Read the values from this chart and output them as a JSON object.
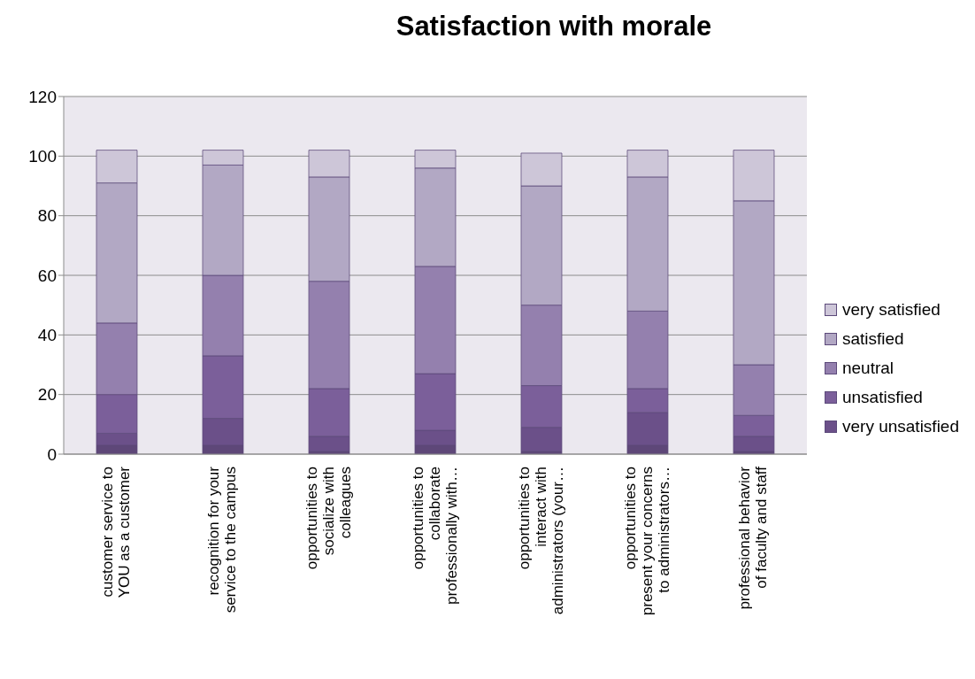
{
  "chart_data": {
    "type": "bar",
    "title": "Satisfaction with morale",
    "stacked": true,
    "categories": [
      "customer service to YOU as a customer",
      "recognition for your service to the campus",
      "opportunities to socialize with colleagues",
      "opportunities to collaborate professionally with…",
      "opportunities to interact with administrators (your…",
      "opportunities to present your concerns to administrators…",
      "professional behavior of faculty and staff"
    ],
    "series": [
      {
        "color": "#5e4778",
        "values": [
          3,
          3,
          1,
          3,
          1,
          3,
          1
        ]
      },
      {
        "name": "very unsatisfied",
        "color": "#6b5089",
        "values": [
          4,
          9,
          5,
          5,
          8,
          11,
          5
        ]
      },
      {
        "name": "unsatisfied",
        "color": "#7b5f9a",
        "values": [
          13,
          21,
          16,
          19,
          14,
          8,
          7
        ]
      },
      {
        "name": "neutral",
        "color": "#9480ae",
        "values": [
          24,
          27,
          36,
          36,
          27,
          26,
          17
        ]
      },
      {
        "name": "satisfied",
        "color": "#b2a8c4",
        "values": [
          47,
          37,
          35,
          33,
          40,
          45,
          55
        ]
      },
      {
        "name": "very satisfied",
        "color": "#cdc6d8",
        "values": [
          11,
          5,
          9,
          6,
          11,
          9,
          17
        ]
      }
    ],
    "ylim": [
      0,
      120
    ],
    "yticks": [
      0,
      20,
      40,
      60,
      80,
      100,
      120
    ],
    "grid": "y",
    "legend": "right"
  }
}
